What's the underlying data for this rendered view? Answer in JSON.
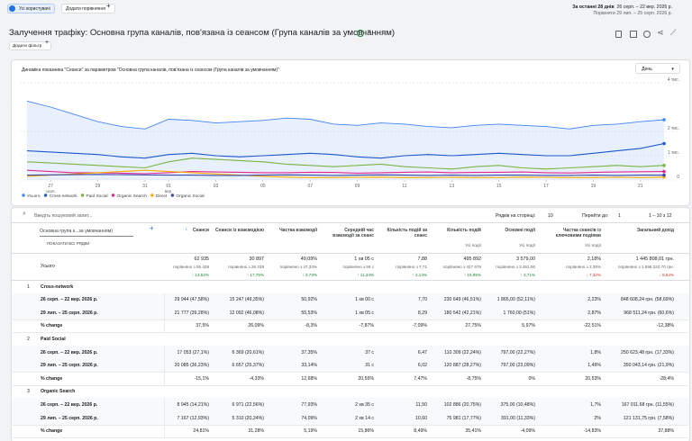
{
  "header": {
    "segment": "Усі користувачі",
    "add_comparison": "Додати порівняння",
    "date_prefix": "За останні 28 днів",
    "date_range": "26 серп. – 22 вер. 2026 р.",
    "compare_range": "Порівняти 29 лип. – 25 серп. 2026 р.",
    "title": "Залучення трафіку: Основна група каналів, пов'язана із сеансом (Група каналів за умовчанням)",
    "add_filter": "Додати фільтр"
  },
  "chart_data": {
    "type": "line",
    "title": "Динаміка показника \"Сеанси\" за параметром \"Основна група каналів, пов'язана із сеансом (Група каналів за умовчанням)\"",
    "granularity": "День",
    "categories": [
      null,
      "27",
      null,
      "29",
      null,
      "31",
      "01",
      null,
      "03",
      null,
      "05",
      null,
      "07",
      null,
      "09",
      null,
      "11",
      null,
      "13",
      null,
      "15",
      null,
      "17",
      null,
      "19",
      null,
      "21",
      null
    ],
    "category_months": [
      null,
      "серп.",
      null,
      null,
      null,
      null,
      "вер.",
      null,
      null,
      null,
      null,
      null,
      null,
      null,
      null,
      null,
      null,
      null,
      null,
      null,
      null,
      null,
      null,
      null,
      null,
      null,
      null,
      null
    ],
    "ylim": [
      0,
      4000
    ],
    "yticks": [
      0,
      {
        "value": 1000,
        "label": "1 тис."
      },
      {
        "value": 2000,
        "label": "2 тис."
      },
      {
        "value": 4000,
        "label": "4 тис."
      }
    ],
    "grid": true,
    "series": [
      {
        "name": "Усього",
        "color": "#4285f4",
        "area": true,
        "values": [
          3250,
          3000,
          2700,
          2400,
          2200,
          2100,
          2500,
          2450,
          2350,
          2400,
          2450,
          2550,
          2500,
          2300,
          2250,
          2350,
          2300,
          2200,
          2150,
          2250,
          2300,
          2250,
          2200,
          2100,
          2250,
          2300,
          2400,
          2480
        ]
      },
      {
        "name": "Cross-network",
        "color": "#1a57c9",
        "values": [
          1200,
          1150,
          1100,
          1050,
          950,
          900,
          1050,
          1100,
          1000,
          950,
          1000,
          1050,
          1100,
          1050,
          950,
          900,
          1000,
          1050,
          1000,
          1050,
          1100,
          1050,
          1000,
          1000,
          1100,
          1200,
          1300,
          1500
        ]
      },
      {
        "name": "Paid Social",
        "color": "#7cb342",
        "values": [
          750,
          700,
          650,
          600,
          550,
          500,
          750,
          900,
          850,
          800,
          750,
          650,
          600,
          550,
          600,
          650,
          550,
          500,
          450,
          550,
          600,
          500,
          450,
          500,
          550,
          600,
          550,
          600
        ]
      },
      {
        "name": "Organic Search",
        "color": "#e52592",
        "values": [
          400,
          350,
          300,
          300,
          280,
          260,
          300,
          350,
          330,
          320,
          300,
          300,
          320,
          310,
          280,
          300,
          320,
          330,
          300,
          310,
          320,
          330,
          300,
          290,
          310,
          330,
          340,
          350
        ]
      },
      {
        "name": "Direct",
        "color": "#f9ab00",
        "values": [
          150,
          200,
          250,
          300,
          350,
          400,
          350,
          300,
          250,
          200,
          150,
          120,
          100,
          100,
          110,
          120,
          100,
          100,
          110,
          100,
          100,
          120,
          110,
          100,
          100,
          110,
          100,
          120
        ]
      },
      {
        "name": "Organic Social",
        "color": "#3949ab",
        "values": [
          200,
          210,
          220,
          230,
          220,
          210,
          200,
          200,
          190,
          190,
          200,
          210,
          200,
          190,
          200,
          210,
          200,
          190,
          200,
          190,
          200,
          200,
          190,
          190,
          200,
          190,
          200,
          200
        ]
      }
    ]
  },
  "table": {
    "search_placeholder": "Введіть пошуковий запит...",
    "rows_per_page_label": "Рядків на сторінці:",
    "rows_per_page": "10",
    "goto_label": "Перейти до:",
    "goto_value": "1",
    "pagination": "1 – 10 з 12",
    "dimension_select": "Основна група к...за умовчанням)",
    "show_all_rows": "ПОКАЗАТИ ВСІ РЯДКИ",
    "columns": [
      {
        "label": "Сеанси"
      },
      {
        "label": "Сеанси із взаємодією"
      },
      {
        "label": "Частка взаємодії"
      },
      {
        "label": "Середній час взаємодії за сеанс"
      },
      {
        "label": "Кількість подій за сеанс"
      },
      {
        "label": "Кількість подій",
        "sub": "Усі події"
      },
      {
        "label": "Основні події",
        "sub": "Усі події"
      },
      {
        "label": "Частка сеансів із ключовими подіями",
        "sub": "Усі події"
      },
      {
        "label": "Загальний дохід"
      }
    ],
    "totals": {
      "label": "Усього",
      "values": [
        "62 935",
        "30 897",
        "49,09%",
        "1 хв 05 с",
        "7,88",
        "495 892",
        "3 579,00",
        "2,18%",
        "1 445 808,01 грн."
      ],
      "compare": [
        "порівняно з 55 439",
        "порівняно з 26 239",
        "порівняно з 47,33%",
        "порівняно з 59 с",
        "порівняно з 7,71",
        "порівняно з 427 679",
        "порівняно з 3 451,00",
        "порівняно з 2,35%",
        "порівняно з 1 598 222,70 грн."
      ],
      "changes": [
        "↑ 13,52%",
        "↑ 17,75%",
        "↑ 3,73%",
        "↑ 11,34%",
        "↑ 2,14%",
        "↑ 15,95%",
        "↑ 3,71%",
        "↓ 7,32%",
        "↓ 9,54%"
      ]
    },
    "groups": [
      {
        "index": "1",
        "name": "Cross-network",
        "rows": [
          {
            "label": "26 серп. – 22 вер. 2026 р.",
            "values": [
              "29 944 (47,58%)",
              "15 247 (49,35%)",
              "50,92%",
              "1 хв 00 с",
              "7,70",
              "230 649 (46,51%)",
              "1 865,00 (52,11%)",
              "2,23%",
              "848 608,24 грн. (58,69%)"
            ]
          },
          {
            "label": "29 лип. – 25 серп. 2026 р.",
            "values": [
              "21 777 (39,28%)",
              "12 092 (46,08%)",
              "55,53%",
              "1 хв 05 с",
              "8,29",
              "180 542 (42,21%)",
              "1 760,00 (51%)",
              "2,87%",
              "968 511,24 грн. (60,6%)"
            ]
          },
          {
            "label": "% change",
            "values": [
              "37,5%",
              "26,09%",
              "-8,3%",
              "-7,87%",
              "-7,09%",
              "27,75%",
              "5,97%",
              "-22,51%",
              "-12,38%"
            ]
          }
        ]
      },
      {
        "index": "2",
        "name": "Paid Social",
        "rows": [
          {
            "label": "26 серп. – 22 вер. 2026 р.",
            "values": [
              "17 053 (27,1%)",
              "6 369 (20,61%)",
              "37,35%",
              "37 с",
              "6,47",
              "110 309 (22,24%)",
              "797,00 (22,27%)",
              "1,8%",
              "250 623,48 грн. (17,33%)"
            ]
          },
          {
            "label": "29 лип. – 25 серп. 2026 р.",
            "values": [
              "20 085 (36,23%)",
              "6 657 (25,37%)",
              "33,14%",
              "31 с",
              "6,02",
              "120 887 (28,27%)",
              "797,00 (23,09%)",
              "1,49%",
              "350 043,14 грн. (21,9%)"
            ]
          },
          {
            "label": "% change",
            "values": [
              "-15,1%",
              "-4,33%",
              "12,68%",
              "20,55%",
              "7,47%",
              "-8,75%",
              "0%",
              "20,53%",
              "-28,4%"
            ]
          }
        ]
      },
      {
        "index": "3",
        "name": "Organic Search",
        "rows": [
          {
            "label": "26 серп. – 22 вер. 2026 р.",
            "values": [
              "8 945 (14,21%)",
              "6 971 (22,56%)",
              "77,93%",
              "2 хв 35 с",
              "11,50",
              "102 886 (20,75%)",
              "375,00 (10,48%)",
              "1,7%",
              "167 011,68 грн. (11,55%)"
            ]
          },
          {
            "label": "29 лип. – 25 серп. 2026 р.",
            "values": [
              "7 167 (12,93%)",
              "5 310 (20,24%)",
              "74,09%",
              "2 хв 14 с",
              "10,60",
              "75 981 (17,77%)",
              "391,00 (11,33%)",
              "2%",
              "121 131,75 грн. (7,58%)"
            ]
          },
          {
            "label": "% change",
            "values": [
              "24,81%",
              "31,28%",
              "5,19%",
              "15,86%",
              "8,49%",
              "35,41%",
              "-4,09%",
              "-14,83%",
              "37,88%"
            ]
          }
        ]
      }
    ]
  }
}
